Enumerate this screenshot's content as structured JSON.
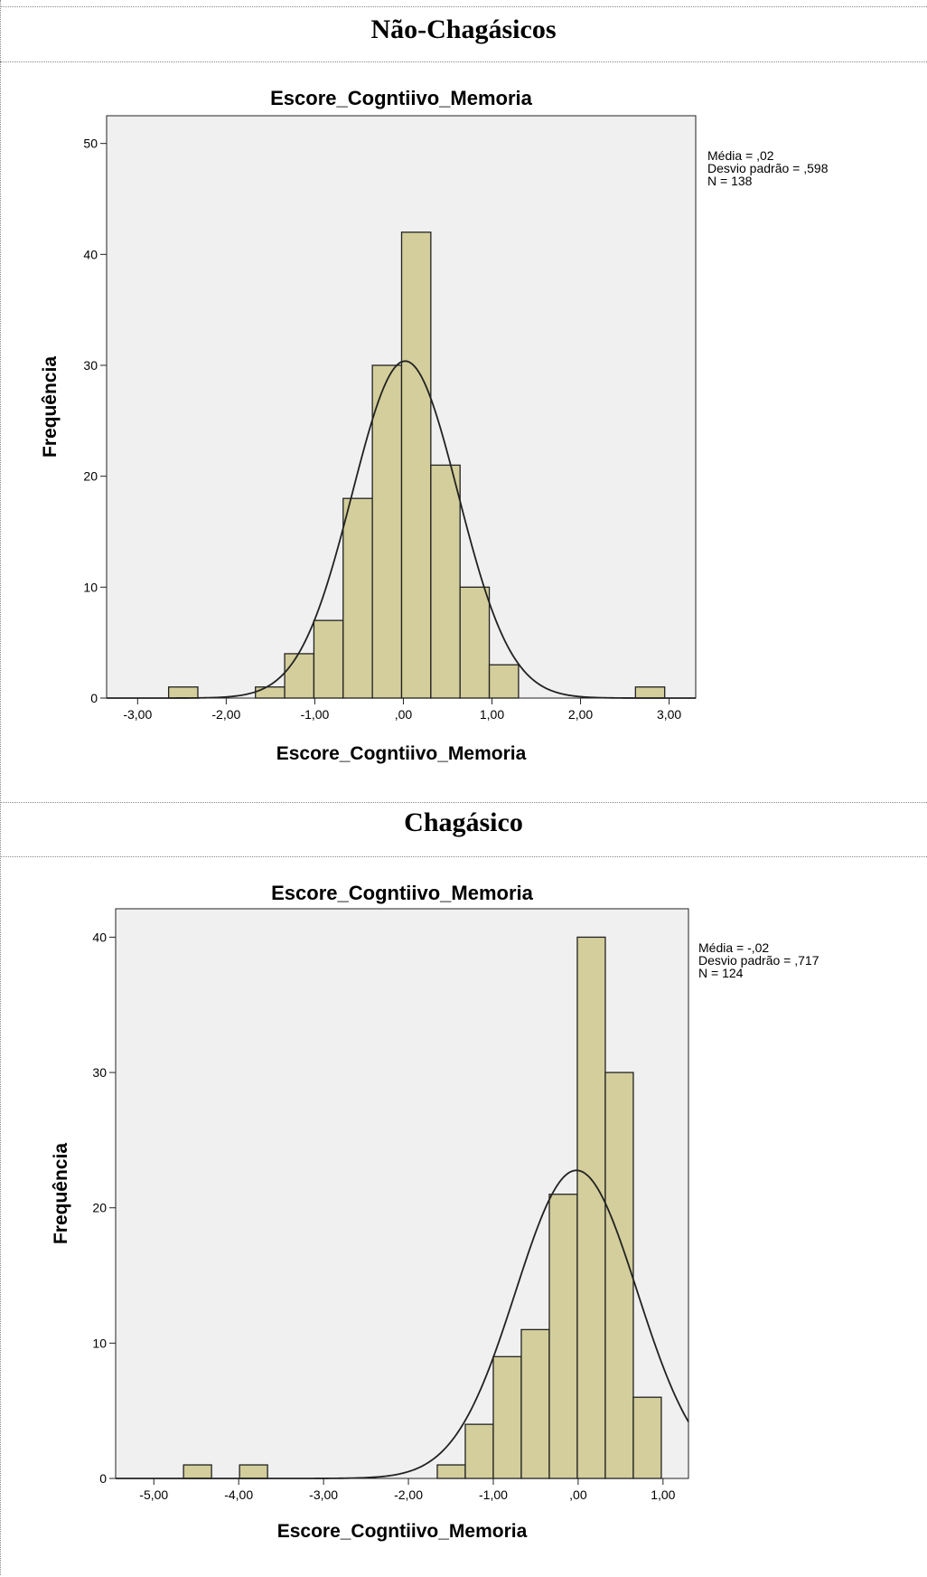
{
  "sections": [
    {
      "header": "Não-Chagásicos"
    },
    {
      "header": "Chagásico"
    }
  ],
  "colors": {
    "bar_fill": "#d3ce9b",
    "plot_bg": "#f0f0f0",
    "stroke": "#222222"
  },
  "chart_data": [
    {
      "type": "bar",
      "title": "Escore_Cogntiivo_Memoria",
      "xlabel": "Escore_Cogntiivo_Memoria",
      "ylabel": "Frequência",
      "xlim": [
        -3.35,
        3.3
      ],
      "ylim": [
        0,
        52.5
      ],
      "x_ticks": [
        -3,
        -2,
        -1,
        0,
        1,
        2,
        3
      ],
      "x_tick_labels": [
        "-3,00",
        "-2,00",
        "-1,00",
        ",00",
        "1,00",
        "2,00",
        "3,00"
      ],
      "y_ticks": [
        0,
        10,
        20,
        30,
        40,
        50
      ],
      "y_tick_labels": [
        "0",
        "10",
        "20",
        "30",
        "40",
        "50"
      ],
      "bin_width": 0.33,
      "bins": [
        {
          "start": -2.65,
          "count": 1
        },
        {
          "start": -1.67,
          "count": 1
        },
        {
          "start": -1.34,
          "count": 4
        },
        {
          "start": -1.01,
          "count": 7
        },
        {
          "start": -0.68,
          "count": 18
        },
        {
          "start": -0.35,
          "count": 30
        },
        {
          "start": -0.02,
          "count": 42
        },
        {
          "start": 0.31,
          "count": 21
        },
        {
          "start": 0.64,
          "count": 10
        },
        {
          "start": 0.97,
          "count": 3
        },
        {
          "start": 2.62,
          "count": 1
        }
      ],
      "normal_curve": {
        "mean": 0.02,
        "sd": 0.598,
        "n": 138
      },
      "stats": [
        "Média = ,02",
        "Desvio padrão = ,598",
        "N = 138"
      ],
      "grid": false
    },
    {
      "type": "bar",
      "title": "Escore_Cogntiivo_Memoria",
      "xlabel": "Escore_Cogntiivo_Memoria",
      "ylabel": "Frequência",
      "xlim": [
        -5.45,
        1.3
      ],
      "ylim": [
        0,
        42.1
      ],
      "x_ticks": [
        -5,
        -4,
        -3,
        -2,
        -1,
        0,
        1
      ],
      "x_tick_labels": [
        "-5,00",
        "-4,00",
        "-3,00",
        "-2,00",
        "-1,00",
        ",00",
        "1,00"
      ],
      "y_ticks": [
        0,
        10,
        20,
        30,
        40
      ],
      "y_tick_labels": [
        "0",
        "10",
        "20",
        "30",
        "40"
      ],
      "bin_width": 0.33,
      "bins": [
        {
          "start": -4.65,
          "count": 1
        },
        {
          "start": -3.99,
          "count": 1
        },
        {
          "start": -1.66,
          "count": 1
        },
        {
          "start": -1.33,
          "count": 4
        },
        {
          "start": -1.0,
          "count": 9
        },
        {
          "start": -0.67,
          "count": 11
        },
        {
          "start": -0.34,
          "count": 21
        },
        {
          "start": -0.01,
          "count": 40
        },
        {
          "start": 0.32,
          "count": 30
        },
        {
          "start": 0.65,
          "count": 6
        }
      ],
      "normal_curve": {
        "mean": -0.02,
        "sd": 0.717,
        "n": 124
      },
      "stats": [
        "Média = -,02",
        "Desvio padrão = ,717",
        "N = 124"
      ],
      "grid": false
    }
  ]
}
